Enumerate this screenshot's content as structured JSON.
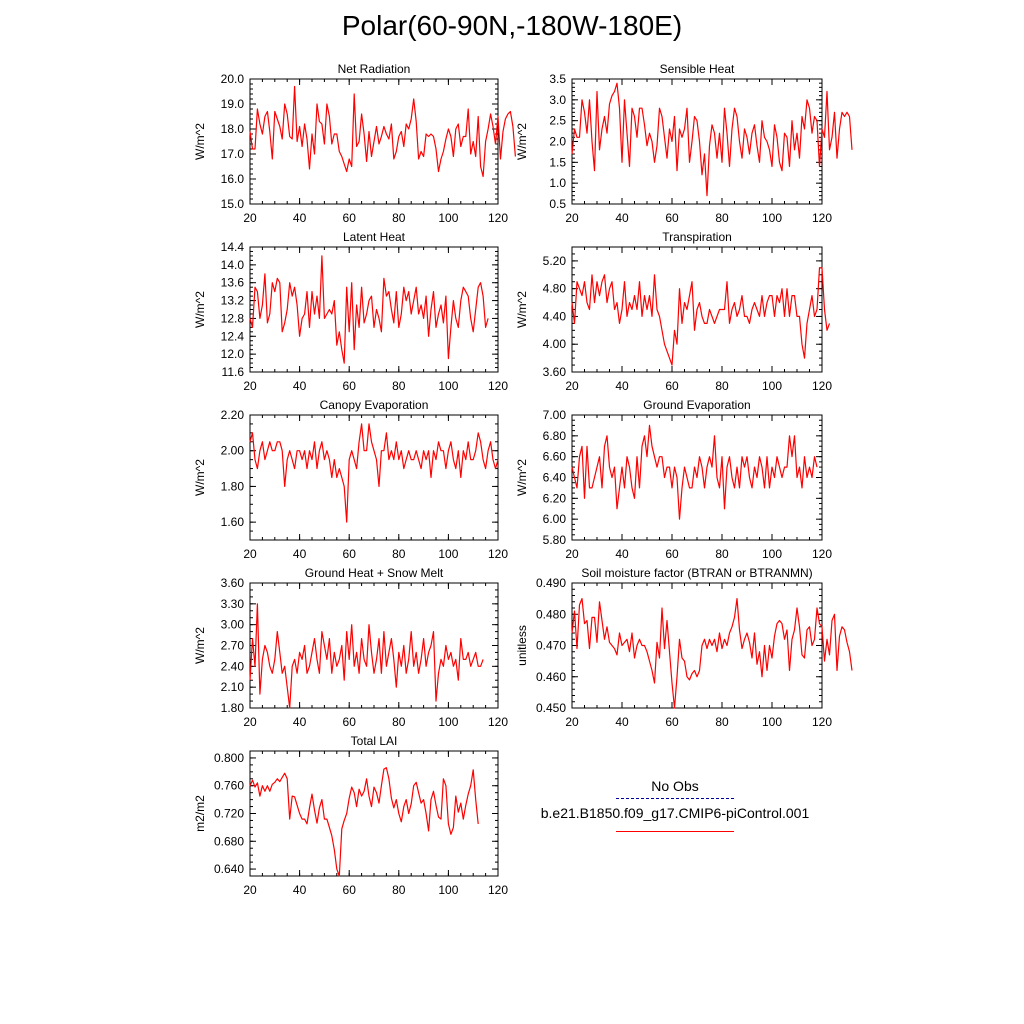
{
  "page": {
    "title": "Polar(60-90N,-180W-180E)"
  },
  "colors": {
    "series": "#ff0000",
    "noobs": "#000099",
    "axis": "#000000"
  },
  "legend": {
    "noobs_label": "No Obs",
    "case_label": "b.e21.B1850.f09_g17.CMIP6-piControl.001"
  },
  "chart_data": [
    {
      "type": "line",
      "title": "Net Radiation",
      "ylabel": "W/m^2",
      "xlim": [
        20,
        120
      ],
      "xticks": [
        20,
        40,
        60,
        80,
        100,
        120
      ],
      "ylim": [
        15.0,
        20.0
      ],
      "yticks": [
        "15.0",
        "16.0",
        "17.0",
        "18.0",
        "19.0",
        "20.0"
      ],
      "minor": 0.2,
      "x_start": 20,
      "x_step": 1,
      "values": [
        17.9,
        17.2,
        17.2,
        18.8,
        18.2,
        17.8,
        18.5,
        18.7,
        17.9,
        16.8,
        18.7,
        18.4,
        18.1,
        17.6,
        19.0,
        18.6,
        17.7,
        17.6,
        19.7,
        17.5,
        18.1,
        17.3,
        18.2,
        17.6,
        16.4,
        17.8,
        17.0,
        19.0,
        18.3,
        18.2,
        17.4,
        19.0,
        18.5,
        17.4,
        17.8,
        17.8,
        17.1,
        16.9,
        16.6,
        16.3,
        16.8,
        16.5,
        19.4,
        17.3,
        17.5,
        18.6,
        17.8,
        16.7,
        17.9,
        16.9,
        17.5,
        18.1,
        17.4,
        17.7,
        18.1,
        17.8,
        17.6,
        18.2,
        16.8,
        17.1,
        17.7,
        17.9,
        17.3,
        18.2,
        18.0,
        18.4,
        19.2,
        18.3,
        16.8,
        17.1,
        16.9,
        17.8,
        17.7,
        17.8,
        17.7,
        17.2,
        16.3,
        16.8,
        17.1,
        17.6,
        18.0,
        17.7,
        16.9,
        18.0,
        18.2,
        17.3,
        17.7,
        17.7,
        18.8,
        17.0,
        17.5,
        16.9,
        18.5,
        16.5,
        16.1,
        17.5,
        18.0,
        18.6,
        18.1,
        17.4,
        18.5,
        16.8,
        17.9,
        18.4,
        18.6,
        18.7,
        18.1,
        16.9
      ]
    },
    {
      "type": "line",
      "title": "Sensible Heat",
      "ylabel": "W/m^2",
      "xlim": [
        20,
        120
      ],
      "xticks": [
        20,
        40,
        60,
        80,
        100,
        120
      ],
      "ylim": [
        0.5,
        3.5
      ],
      "yticks": [
        "0.5",
        "1.0",
        "1.5",
        "2.0",
        "2.5",
        "3.0",
        "3.5"
      ],
      "minor": 0.1,
      "x_start": 20,
      "x_step": 1,
      "values": [
        1.7,
        2.3,
        2.1,
        2.1,
        3.0,
        2.7,
        2.2,
        3.0,
        2.0,
        1.3,
        3.2,
        1.8,
        2.3,
        2.6,
        2.2,
        2.9,
        3.1,
        3.2,
        3.4,
        2.8,
        1.5,
        3.0,
        2.2,
        1.4,
        2.8,
        2.6,
        2.1,
        2.8,
        2.8,
        2.4,
        1.9,
        2.2,
        2.0,
        1.5,
        1.9,
        2.8,
        2.6,
        2.1,
        1.6,
        2.3,
        2.0,
        2.6,
        1.3,
        2.3,
        2.1,
        2.3,
        2.8,
        1.5,
        2.0,
        2.6,
        2.5,
        2.0,
        1.2,
        1.7,
        0.7,
        1.9,
        2.4,
        2.2,
        1.6,
        2.2,
        1.5,
        2.8,
        2.2,
        1.4,
        2.3,
        2.8,
        2.6,
        2.0,
        1.6,
        2.3,
        2.1,
        1.7,
        2.2,
        2.4,
        1.9,
        1.5,
        2.5,
        2.1,
        2.0,
        1.8,
        1.4,
        2.4,
        2.1,
        1.5,
        1.3,
        2.2,
        2.1,
        1.4,
        2.5,
        1.8,
        2.2,
        1.6,
        2.6,
        2.3,
        3.0,
        2.8,
        2.2,
        2.6,
        2.5,
        1.4,
        2.3,
        2.1,
        3.2,
        1.8,
        2.1,
        2.7,
        1.6,
        2.3,
        2.7,
        2.6,
        2.7,
        2.6,
        1.8
      ]
    },
    {
      "type": "line",
      "title": "Latent Heat",
      "ylabel": "W/m^2",
      "xlim": [
        20,
        120
      ],
      "xticks": [
        20,
        40,
        60,
        80,
        100,
        120
      ],
      "ylim": [
        11.6,
        14.4
      ],
      "yticks": [
        "11.6",
        "12.0",
        "12.4",
        "12.8",
        "13.2",
        "13.6",
        "14.0",
        "14.4"
      ],
      "minor": 0.1,
      "x_start": 20,
      "x_step": 1,
      "values": [
        12.8,
        12.6,
        13.5,
        13.4,
        12.8,
        13.1,
        13.8,
        12.7,
        12.9,
        13.6,
        13.4,
        13.7,
        13.6,
        12.5,
        12.7,
        13.0,
        13.6,
        13.3,
        13.5,
        13.1,
        12.4,
        12.8,
        12.9,
        13.4,
        12.6,
        13.4,
        12.9,
        13.3,
        12.8,
        14.2,
        12.8,
        12.9,
        13.0,
        12.9,
        13.2,
        12.2,
        12.5,
        12.1,
        11.8,
        13.5,
        12.5,
        13.6,
        12.1,
        13.1,
        12.6,
        13.5,
        12.7,
        12.9,
        13.2,
        13.3,
        12.6,
        13.0,
        12.8,
        12.5,
        13.7,
        13.3,
        13.4,
        13.0,
        12.7,
        13.4,
        12.6,
        12.9,
        13.5,
        13.2,
        13.4,
        12.9,
        13.2,
        13.5,
        12.9,
        13.1,
        12.8,
        13.3,
        12.4,
        13.0,
        13.4,
        12.6,
        12.9,
        13.1,
        12.7,
        13.3,
        11.9,
        12.6,
        13.2,
        12.8,
        12.6,
        13.2,
        13.5,
        13.4,
        13.3,
        12.8,
        12.5,
        13.0,
        13.5,
        13.6,
        13.3,
        12.6,
        12.8
      ]
    },
    {
      "type": "line",
      "title": "Transpiration",
      "ylabel": "W/m^2",
      "xlim": [
        20,
        120
      ],
      "xticks": [
        20,
        40,
        60,
        80,
        100,
        120
      ],
      "ylim": [
        3.6,
        5.4
      ],
      "yticks": [
        "3.60",
        "4.00",
        "4.40",
        "4.80",
        "5.20"
      ],
      "minor": 0.1,
      "x_start": 20,
      "x_step": 1,
      "values": [
        4.6,
        4.3,
        4.9,
        4.8,
        4.7,
        4.9,
        4.6,
        4.5,
        5.0,
        4.6,
        4.9,
        4.7,
        4.9,
        5.0,
        4.6,
        4.8,
        4.9,
        4.5,
        4.6,
        4.3,
        4.5,
        4.9,
        4.4,
        4.6,
        4.5,
        4.7,
        4.5,
        4.9,
        4.4,
        4.7,
        4.5,
        4.7,
        4.4,
        5.0,
        4.5,
        4.4,
        4.2,
        4.0,
        3.9,
        3.8,
        3.7,
        4.2,
        4.0,
        4.8,
        4.3,
        4.6,
        4.5,
        4.7,
        4.9,
        4.2,
        4.5,
        4.6,
        4.4,
        4.3,
        4.3,
        4.5,
        4.4,
        4.3,
        4.4,
        4.5,
        4.5,
        4.5,
        4.9,
        4.3,
        4.5,
        4.6,
        4.4,
        4.5,
        4.7,
        4.4,
        4.4,
        4.3,
        4.5,
        4.6,
        4.5,
        4.4,
        4.7,
        4.4,
        4.6,
        4.7,
        4.7,
        4.4,
        4.7,
        4.6,
        4.8,
        4.4,
        4.8,
        4.4,
        4.7,
        4.7,
        4.4,
        4.4,
        4.0,
        3.8,
        4.3,
        4.5,
        4.7,
        4.4,
        4.5,
        5.1,
        5.1,
        4.5,
        4.2,
        4.3
      ]
    },
    {
      "type": "line",
      "title": "Canopy Evaporation",
      "ylabel": "W/m^2",
      "xlim": [
        20,
        120
      ],
      "xticks": [
        20,
        40,
        60,
        80,
        100,
        120
      ],
      "ylim": [
        1.5,
        2.2
      ],
      "yticks": [
        "1.60",
        "1.80",
        "2.00",
        "2.20"
      ],
      "minor": 0.05,
      "x_start": 20,
      "x_step": 1,
      "values": [
        2.05,
        2.1,
        1.95,
        1.9,
        2.0,
        2.05,
        1.95,
        2.0,
        2.05,
        2.0,
        2.0,
        2.05,
        2.05,
        2.0,
        1.8,
        1.95,
        2.0,
        1.95,
        1.9,
        2.0,
        2.0,
        1.95,
        2.0,
        1.9,
        2.0,
        1.95,
        2.05,
        1.9,
        2.0,
        2.05,
        1.95,
        2.0,
        1.95,
        1.85,
        1.95,
        1.85,
        1.9,
        1.85,
        1.8,
        1.6,
        1.95,
        2.0,
        1.95,
        1.9,
        2.05,
        2.15,
        2.0,
        2.0,
        2.15,
        2.05,
        2.0,
        1.95,
        1.8,
        2.0,
        2.0,
        2.1,
        1.95,
        2.0,
        1.95,
        2.05,
        1.95,
        2.0,
        1.9,
        1.95,
        2.0,
        1.95,
        1.95,
        2.0,
        1.95,
        1.9,
        2.0,
        1.95,
        2.0,
        1.85,
        2.0,
        1.95,
        2.05,
        2.0,
        2.0,
        1.9,
        2.0,
        2.05,
        1.95,
        1.9,
        2.0,
        1.85,
        2.0,
        1.95,
        2.05,
        1.95,
        1.95,
        2.0,
        2.1,
        2.05,
        1.95,
        1.9,
        2.0,
        2.05,
        1.95,
        1.9,
        1.95
      ]
    },
    {
      "type": "line",
      "title": "Ground Evaporation",
      "ylabel": "W/m^2",
      "xlim": [
        20,
        120
      ],
      "xticks": [
        20,
        40,
        60,
        80,
        100,
        120
      ],
      "ylim": [
        5.8,
        7.0
      ],
      "yticks": [
        "5.80",
        "6.00",
        "6.20",
        "6.40",
        "6.60",
        "6.80",
        "7.00"
      ],
      "minor": 0.05,
      "x_start": 20,
      "x_step": 1,
      "values": [
        6.5,
        6.4,
        6.3,
        6.6,
        6.7,
        6.2,
        6.7,
        6.3,
        6.3,
        6.4,
        6.5,
        6.6,
        6.3,
        6.7,
        6.8,
        6.5,
        6.4,
        6.5,
        6.1,
        6.3,
        6.5,
        6.3,
        6.6,
        6.5,
        6.3,
        6.2,
        6.6,
        6.3,
        6.7,
        6.8,
        6.6,
        6.9,
        6.7,
        6.6,
        6.5,
        6.6,
        6.6,
        6.4,
        6.5,
        6.5,
        6.3,
        6.5,
        6.4,
        6.0,
        6.3,
        6.5,
        6.4,
        6.3,
        6.3,
        6.5,
        6.4,
        6.6,
        6.5,
        6.3,
        6.5,
        6.6,
        6.5,
        6.8,
        6.4,
        6.3,
        6.6,
        6.1,
        6.5,
        6.6,
        6.4,
        6.3,
        6.5,
        6.3,
        6.6,
        6.5,
        6.6,
        6.4,
        6.3,
        6.5,
        6.4,
        6.6,
        6.5,
        6.3,
        6.6,
        6.3,
        6.5,
        6.4,
        6.6,
        6.5,
        6.4,
        6.5,
        6.5,
        6.8,
        6.6,
        6.8,
        6.4,
        6.5,
        6.3,
        6.6,
        6.4,
        6.5,
        6.4,
        6.6,
        6.5
      ]
    },
    {
      "type": "line",
      "title": "Ground Heat + Snow Melt",
      "ylabel": "W/m^2",
      "xlim": [
        20,
        120
      ],
      "xticks": [
        20,
        40,
        60,
        80,
        100,
        120
      ],
      "ylim": [
        1.8,
        3.6
      ],
      "yticks": [
        "1.80",
        "2.10",
        "2.40",
        "2.70",
        "3.00",
        "3.30",
        "3.60"
      ],
      "minor": 0.1,
      "x_start": 20,
      "x_step": 1,
      "values": [
        2.2,
        2.8,
        2.4,
        3.3,
        2.0,
        2.5,
        2.7,
        2.6,
        2.4,
        2.3,
        2.5,
        2.9,
        2.6,
        2.3,
        2.4,
        2.1,
        1.8,
        2.4,
        2.5,
        2.3,
        2.6,
        2.5,
        2.7,
        2.3,
        2.4,
        2.6,
        2.8,
        2.5,
        2.3,
        2.9,
        2.7,
        2.5,
        2.8,
        2.3,
        2.6,
        2.4,
        2.5,
        2.7,
        2.2,
        2.9,
        2.5,
        3.0,
        2.4,
        2.6,
        2.3,
        2.8,
        2.5,
        2.4,
        3.0,
        2.6,
        2.3,
        2.5,
        2.8,
        2.3,
        2.9,
        2.4,
        2.6,
        2.8,
        2.5,
        2.1,
        2.6,
        2.4,
        2.7,
        2.3,
        2.5,
        2.9,
        2.4,
        2.6,
        2.3,
        2.5,
        2.8,
        2.4,
        2.6,
        2.7,
        2.9,
        1.9,
        2.3,
        2.5,
        2.4,
        2.7,
        2.5,
        2.6,
        2.4,
        2.5,
        2.2,
        2.8,
        2.5,
        2.5,
        2.6,
        2.4,
        2.5,
        2.6,
        2.4,
        2.4,
        2.5
      ]
    },
    {
      "type": "line",
      "title": "Soil moisture factor (BTRAN or BTRANMN)",
      "ylabel": "unitless",
      "xlim": [
        20,
        120
      ],
      "xticks": [
        20,
        40,
        60,
        80,
        100,
        120
      ],
      "ylim": [
        0.45,
        0.49
      ],
      "yticks": [
        "0.450",
        "0.460",
        "0.470",
        "0.480",
        "0.490"
      ],
      "minor": 0.002,
      "x_start": 20,
      "x_step": 1,
      "values": [
        0.474,
        0.481,
        0.469,
        0.483,
        0.485,
        0.477,
        0.478,
        0.469,
        0.479,
        0.479,
        0.471,
        0.484,
        0.478,
        0.472,
        0.476,
        0.471,
        0.47,
        0.469,
        0.467,
        0.474,
        0.47,
        0.471,
        0.472,
        0.468,
        0.474,
        0.466,
        0.47,
        0.472,
        0.47,
        0.47,
        0.468,
        0.465,
        0.462,
        0.458,
        0.471,
        0.466,
        0.482,
        0.469,
        0.478,
        0.468,
        0.458,
        0.45,
        0.46,
        0.472,
        0.466,
        0.465,
        0.46,
        0.459,
        0.461,
        0.462,
        0.46,
        0.462,
        0.47,
        0.472,
        0.469,
        0.472,
        0.47,
        0.472,
        0.468,
        0.474,
        0.469,
        0.472,
        0.47,
        0.474,
        0.476,
        0.479,
        0.485,
        0.475,
        0.469,
        0.472,
        0.474,
        0.471,
        0.466,
        0.474,
        0.464,
        0.468,
        0.46,
        0.47,
        0.462,
        0.47,
        0.466,
        0.473,
        0.477,
        0.478,
        0.477,
        0.472,
        0.475,
        0.462,
        0.472,
        0.475,
        0.482,
        0.476,
        0.467,
        0.466,
        0.475,
        0.476,
        0.47,
        0.472,
        0.482,
        0.477,
        0.476,
        0.465,
        0.472,
        0.467,
        0.478,
        0.48,
        0.462,
        0.473,
        0.476,
        0.475,
        0.471,
        0.468,
        0.462
      ]
    },
    {
      "type": "line",
      "title": "Total LAI",
      "ylabel": "m2/m2",
      "xlim": [
        20,
        120
      ],
      "xticks": [
        20,
        40,
        60,
        80,
        100,
        120
      ],
      "ylim": [
        0.63,
        0.81
      ],
      "yticks": [
        "0.640",
        "0.680",
        "0.720",
        "0.760",
        "0.800"
      ],
      "minor": 0.01,
      "x_start": 20,
      "x_step": 1,
      "values": [
        0.76,
        0.768,
        0.758,
        0.764,
        0.745,
        0.76,
        0.752,
        0.76,
        0.752,
        0.762,
        0.765,
        0.77,
        0.766,
        0.772,
        0.778,
        0.77,
        0.712,
        0.745,
        0.744,
        0.732,
        0.72,
        0.712,
        0.712,
        0.705,
        0.728,
        0.748,
        0.725,
        0.706,
        0.728,
        0.74,
        0.712,
        0.712,
        0.7,
        0.688,
        0.668,
        0.64,
        0.63,
        0.698,
        0.71,
        0.72,
        0.742,
        0.758,
        0.75,
        0.73,
        0.755,
        0.745,
        0.752,
        0.77,
        0.745,
        0.73,
        0.758,
        0.75,
        0.735,
        0.76,
        0.784,
        0.786,
        0.77,
        0.742,
        0.728,
        0.74,
        0.72,
        0.708,
        0.73,
        0.74,
        0.72,
        0.734,
        0.76,
        0.765,
        0.75,
        0.735,
        0.74,
        0.72,
        0.695,
        0.74,
        0.752,
        0.732,
        0.715,
        0.712,
        0.77,
        0.76,
        0.705,
        0.69,
        0.7,
        0.745,
        0.722,
        0.735,
        0.712,
        0.732,
        0.748,
        0.76,
        0.783,
        0.74,
        0.705
      ]
    }
  ]
}
